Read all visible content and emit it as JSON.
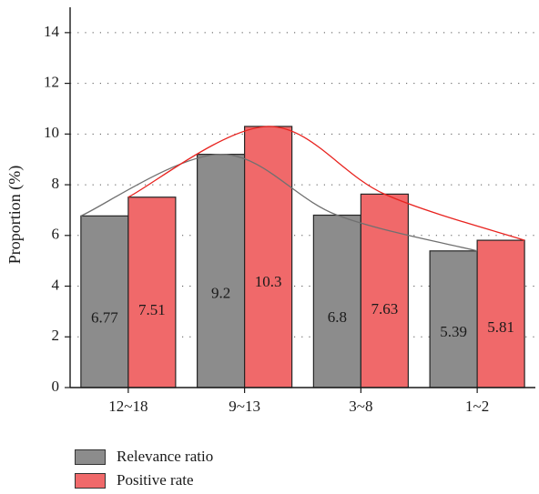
{
  "chart_data": {
    "type": "bar",
    "categories": [
      "12~18",
      "9~13",
      "3~8",
      "1~2"
    ],
    "series": [
      {
        "name": "Relevance ratio",
        "values": [
          6.77,
          9.2,
          6.8,
          5.39
        ],
        "color": "#8c8c8c",
        "curve_color": "#707070"
      },
      {
        "name": "Positive rate",
        "values": [
          7.51,
          10.3,
          7.63,
          5.81
        ],
        "color": "#f0696a",
        "curve_color": "#e8231f"
      }
    ],
    "data_labels": {
      "Relevance ratio": [
        "6.77",
        "9.2",
        "6.8",
        "5.39"
      ],
      "Positive rate": [
        "7.51",
        "10.3",
        "7.63",
        "5.81"
      ]
    },
    "ylabel": "Proportion (%)",
    "xlabel": "",
    "ylim": [
      0,
      15
    ],
    "yticks": [
      0,
      2,
      4,
      6,
      8,
      10,
      12,
      14
    ],
    "grid": "horizontal-dotted",
    "smooth_curves": true,
    "legend_position": "bottom-left"
  }
}
